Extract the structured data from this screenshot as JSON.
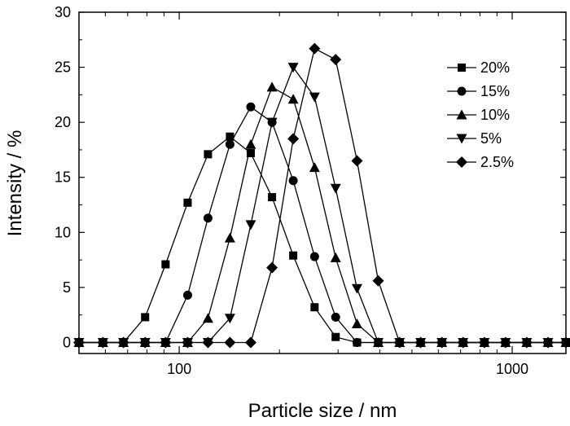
{
  "chart_data": {
    "type": "line",
    "title": "",
    "xlabel": "Particle size / nm",
    "ylabel": "Intensity / %",
    "xscale": "log",
    "xlim": [
      50,
      1450
    ],
    "ylim": [
      -1,
      30
    ],
    "xticks": [
      {
        "value": 100,
        "label": "100"
      },
      {
        "value": 1000,
        "label": "1000"
      }
    ],
    "yticks": [
      {
        "value": 0,
        "label": "0"
      },
      {
        "value": 5,
        "label": "5"
      },
      {
        "value": 10,
        "label": "10"
      },
      {
        "value": 15,
        "label": "15"
      },
      {
        "value": 20,
        "label": "20"
      },
      {
        "value": 25,
        "label": "25"
      },
      {
        "value": 30,
        "label": "30"
      }
    ],
    "grid": false,
    "legend_position": "top-right",
    "x": [
      50,
      59,
      68,
      79,
      91,
      106,
      122,
      142,
      164,
      190,
      220,
      255,
      295,
      342,
      396,
      459,
      531,
      615,
      712,
      825,
      955,
      1106,
      1281,
      1450
    ],
    "series": [
      {
        "name": "20%",
        "marker": "square",
        "values": [
          0,
          0,
          0,
          2.3,
          7.1,
          12.7,
          17.1,
          18.7,
          17.2,
          13.2,
          7.9,
          3.2,
          0.5,
          0,
          0,
          0,
          0,
          0,
          0,
          0,
          0,
          0,
          0,
          0
        ]
      },
      {
        "name": "15%",
        "marker": "circle",
        "values": [
          0,
          0,
          0,
          0,
          0,
          4.3,
          11.3,
          18.0,
          21.4,
          20.0,
          14.7,
          7.8,
          2.3,
          0,
          0,
          0,
          0,
          0,
          0,
          0,
          0,
          0,
          0,
          0
        ]
      },
      {
        "name": "10%",
        "marker": "triangle-up",
        "values": [
          0,
          0,
          0,
          0,
          0,
          0,
          2.2,
          9.5,
          18.0,
          23.2,
          22.1,
          15.9,
          7.7,
          1.7,
          0,
          0,
          0,
          0,
          0,
          0,
          0,
          0,
          0,
          0
        ]
      },
      {
        "name": "5%",
        "marker": "triangle-down",
        "values": [
          0,
          0,
          0,
          0,
          0,
          0,
          0,
          2.2,
          10.7,
          20.0,
          25.0,
          22.3,
          14.0,
          4.9,
          0,
          0,
          0,
          0,
          0,
          0,
          0,
          0,
          0,
          0
        ]
      },
      {
        "name": "2.5%",
        "marker": "diamond",
        "values": [
          0,
          0,
          0,
          0,
          0,
          0,
          0,
          0,
          0,
          6.8,
          18.5,
          26.7,
          25.7,
          16.5,
          5.6,
          0,
          0,
          0,
          0,
          0,
          0,
          0,
          0,
          0
        ]
      }
    ]
  }
}
